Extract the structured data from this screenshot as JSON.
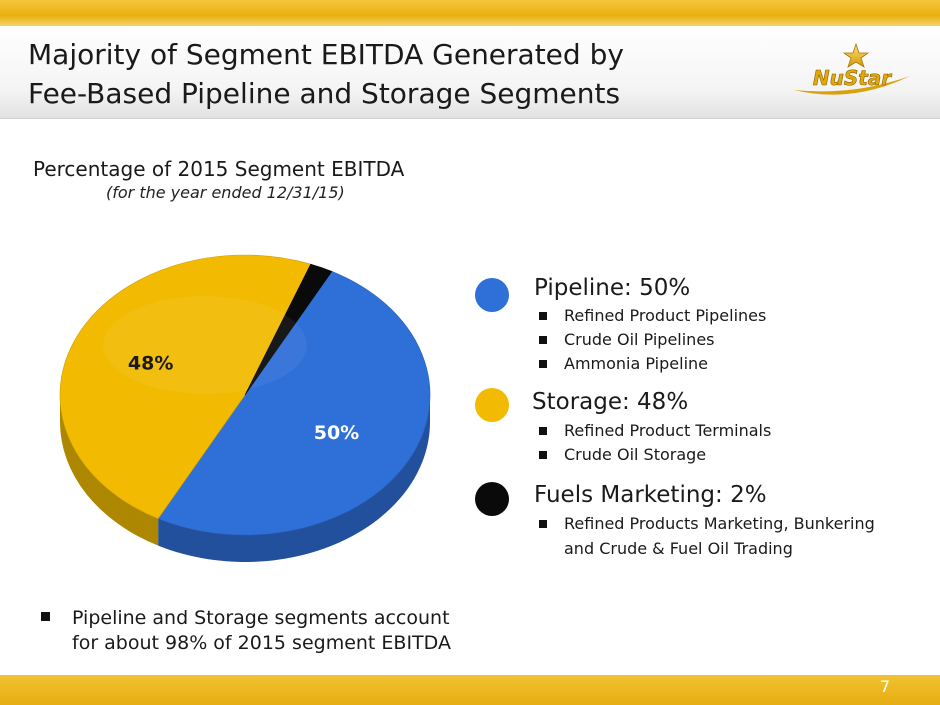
{
  "header": {
    "title_line1": "Majority of Segment EBITDA Generated by",
    "title_line2": "Fee-Based Pipeline and Storage Segments",
    "logo_text": "NuStar"
  },
  "colors": {
    "pipeline": "#2f6fd8",
    "storage": "#f2bb02",
    "fuels": "#0a0a0a",
    "accent": "#e9b010"
  },
  "chart_data": {
    "type": "pie",
    "title": "Percentage of 2015 Segment EBITDA",
    "subtitle": "(for the year ended 12/31/15)",
    "categories": [
      "Pipeline",
      "Storage",
      "Fuels Marketing"
    ],
    "values": [
      50,
      48,
      2
    ],
    "data_labels": [
      "50%",
      "48%",
      ""
    ],
    "legend_placement": "right"
  },
  "legend": {
    "items": [
      {
        "title": "Pipeline: 50%",
        "bullets": [
          "Refined Product Pipelines",
          "Crude Oil Pipelines",
          "Ammonia Pipeline"
        ]
      },
      {
        "title": "Storage: 48%",
        "bullets": [
          "Refined Product Terminals",
          "Crude Oil Storage"
        ]
      },
      {
        "title": "Fuels Marketing: 2%",
        "bullets": [
          "Refined Products Marketing, Bunkering",
          "and Crude & Fuel Oil Trading"
        ]
      }
    ]
  },
  "footnote": {
    "text_line1": "Pipeline and Storage segments account",
    "text_line2": "for about 98% of 2015 segment EBITDA"
  },
  "page_number": "7"
}
